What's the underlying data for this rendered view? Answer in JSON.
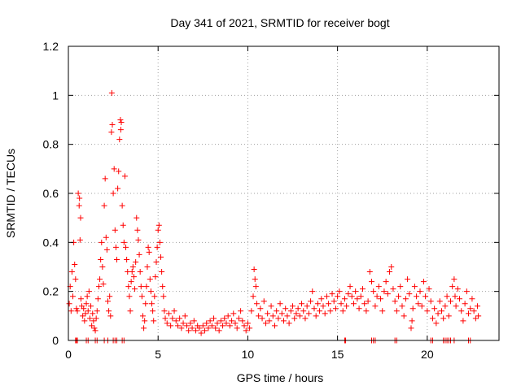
{
  "chart_data": {
    "type": "scatter",
    "title": "Day 341 of 2021, SRMTID for receiver bogt",
    "xlabel": "GPS time / hours",
    "ylabel": "SRMTID / TECUs",
    "xlim": [
      0,
      24
    ],
    "ylim": [
      0,
      1.2
    ],
    "xticks": [
      0,
      5,
      10,
      15,
      20
    ],
    "yticks": [
      0,
      0.2,
      0.4,
      0.6,
      0.8,
      1,
      1.2
    ],
    "xtick_labels": [
      "0",
      "5",
      "10",
      "15",
      "20"
    ],
    "ytick_labels": [
      "0",
      "0.2",
      "0.4",
      "0.6",
      "0.8",
      "1",
      "1.2"
    ],
    "grid": true,
    "marker": "plus",
    "color": "#ff0000",
    "series": [
      {
        "name": "SRMTID",
        "points": [
          [
            0.05,
            0.15
          ],
          [
            0.1,
            0.22
          ],
          [
            0.15,
            0.12
          ],
          [
            0.2,
            0.28
          ],
          [
            0.25,
            0.18
          ],
          [
            0.3,
            0.4
          ],
          [
            0.35,
            0.31
          ],
          [
            0.4,
            0.25
          ],
          [
            0.45,
            0.13
          ],
          [
            0.5,
            0.12
          ],
          [
            0.55,
            0.6
          ],
          [
            0.6,
            0.55
          ],
          [
            0.62,
            0.58
          ],
          [
            0.65,
            0.41
          ],
          [
            0.68,
            0.5
          ],
          [
            0.7,
            0.17
          ],
          [
            0.75,
            0.14
          ],
          [
            0.8,
            0.1
          ],
          [
            0.85,
            0.13
          ],
          [
            0.9,
            0.08
          ],
          [
            0.95,
            0.11
          ],
          [
            1.0,
            0.15
          ],
          [
            1.05,
            0.18
          ],
          [
            1.1,
            0.12
          ],
          [
            1.15,
            0.2
          ],
          [
            1.2,
            0.09
          ],
          [
            1.25,
            0.14
          ],
          [
            1.3,
            0.06
          ],
          [
            1.35,
            0.11
          ],
          [
            1.4,
            0.08
          ],
          [
            1.45,
            0.05
          ],
          [
            1.5,
            0.04
          ],
          [
            1.55,
            0.09
          ],
          [
            1.6,
            0.12
          ],
          [
            1.65,
            0.17
          ],
          [
            1.7,
            0.22
          ],
          [
            1.75,
            0.25
          ],
          [
            1.8,
            0.33
          ],
          [
            1.85,
            0.4
          ],
          [
            1.9,
            0.3
          ],
          [
            1.95,
            0.23
          ],
          [
            2.0,
            0.55
          ],
          [
            2.05,
            0.66
          ],
          [
            2.1,
            0.42
          ],
          [
            2.15,
            0.37
          ],
          [
            2.2,
            0.16
          ],
          [
            2.25,
            0.12
          ],
          [
            2.3,
            0.18
          ],
          [
            2.35,
            0.1
          ],
          [
            2.4,
            0.85
          ],
          [
            2.42,
            1.01
          ],
          [
            2.45,
            0.88
          ],
          [
            2.5,
            0.6
          ],
          [
            2.55,
            0.7
          ],
          [
            2.6,
            0.45
          ],
          [
            2.65,
            0.38
          ],
          [
            2.7,
            0.33
          ],
          [
            2.75,
            0.62
          ],
          [
            2.8,
            0.69
          ],
          [
            2.85,
            0.82
          ],
          [
            2.9,
            0.9
          ],
          [
            2.92,
            0.86
          ],
          [
            2.95,
            0.89
          ],
          [
            3.0,
            0.55
          ],
          [
            3.05,
            0.47
          ],
          [
            3.1,
            0.4
          ],
          [
            3.15,
            0.67
          ],
          [
            3.2,
            0.38
          ],
          [
            3.25,
            0.33
          ],
          [
            3.3,
            0.28
          ],
          [
            3.35,
            0.22
          ],
          [
            3.4,
            0.18
          ],
          [
            3.45,
            0.12
          ],
          [
            3.5,
            0.24
          ],
          [
            3.55,
            0.28
          ],
          [
            3.6,
            0.3
          ],
          [
            3.65,
            0.26
          ],
          [
            3.7,
            0.21
          ],
          [
            3.75,
            0.32
          ],
          [
            3.8,
            0.5
          ],
          [
            3.85,
            0.45
          ],
          [
            3.9,
            0.41
          ],
          [
            3.95,
            0.35
          ],
          [
            4.0,
            0.28
          ],
          [
            4.05,
            0.22
          ],
          [
            4.1,
            0.18
          ],
          [
            4.15,
            0.1
          ],
          [
            4.2,
            0.05
          ],
          [
            4.25,
            0.08
          ],
          [
            4.3,
            0.15
          ],
          [
            4.35,
            0.22
          ],
          [
            4.4,
            0.3
          ],
          [
            4.45,
            0.38
          ],
          [
            4.5,
            0.36
          ],
          [
            4.55,
            0.25
          ],
          [
            4.6,
            0.2
          ],
          [
            4.65,
            0.15
          ],
          [
            4.7,
            0.12
          ],
          [
            4.75,
            0.08
          ],
          [
            4.8,
            0.18
          ],
          [
            4.85,
            0.26
          ],
          [
            4.9,
            0.32
          ],
          [
            4.95,
            0.38
          ],
          [
            5.0,
            0.45
          ],
          [
            5.05,
            0.47
          ],
          [
            5.1,
            0.4
          ],
          [
            5.15,
            0.34
          ],
          [
            5.2,
            0.28
          ],
          [
            5.25,
            0.22
          ],
          [
            5.3,
            0.18
          ],
          [
            5.35,
            0.12
          ],
          [
            5.4,
            0.09
          ],
          [
            5.5,
            0.07
          ],
          [
            5.6,
            0.11
          ],
          [
            5.7,
            0.06
          ],
          [
            5.8,
            0.09
          ],
          [
            5.9,
            0.12
          ],
          [
            6.0,
            0.08
          ],
          [
            6.1,
            0.06
          ],
          [
            6.2,
            0.09
          ],
          [
            6.3,
            0.05
          ],
          [
            6.4,
            0.07
          ],
          [
            6.5,
            0.1
          ],
          [
            6.6,
            0.06
          ],
          [
            6.7,
            0.04
          ],
          [
            6.8,
            0.07
          ],
          [
            6.9,
            0.05
          ],
          [
            7.0,
            0.08
          ],
          [
            7.1,
            0.04
          ],
          [
            7.2,
            0.06
          ],
          [
            7.3,
            0.05
          ],
          [
            7.4,
            0.03
          ],
          [
            7.5,
            0.06
          ],
          [
            7.6,
            0.04
          ],
          [
            7.7,
            0.07
          ],
          [
            7.8,
            0.05
          ],
          [
            7.9,
            0.08
          ],
          [
            8.0,
            0.06
          ],
          [
            8.1,
            0.09
          ],
          [
            8.2,
            0.05
          ],
          [
            8.3,
            0.07
          ],
          [
            8.4,
            0.04
          ],
          [
            8.5,
            0.08
          ],
          [
            8.6,
            0.06
          ],
          [
            8.7,
            0.09
          ],
          [
            8.8,
            0.07
          ],
          [
            8.9,
            0.1
          ],
          [
            9.0,
            0.06
          ],
          [
            9.1,
            0.08
          ],
          [
            9.2,
            0.11
          ],
          [
            9.3,
            0.07
          ],
          [
            9.4,
            0.05
          ],
          [
            9.5,
            0.09
          ],
          [
            9.6,
            0.12
          ],
          [
            9.7,
            0.08
          ],
          [
            9.8,
            0.06
          ],
          [
            9.9,
            0.04
          ],
          [
            10.0,
            0.07
          ],
          [
            10.1,
            0.05
          ],
          [
            10.2,
            0.12
          ],
          [
            10.3,
            0.18
          ],
          [
            10.35,
            0.29
          ],
          [
            10.4,
            0.25
          ],
          [
            10.45,
            0.22
          ],
          [
            10.5,
            0.15
          ],
          [
            10.6,
            0.1
          ],
          [
            10.7,
            0.13
          ],
          [
            10.8,
            0.09
          ],
          [
            10.9,
            0.16
          ],
          [
            11.0,
            0.07
          ],
          [
            11.1,
            0.11
          ],
          [
            11.2,
            0.08
          ],
          [
            11.3,
            0.14
          ],
          [
            11.4,
            0.1
          ],
          [
            11.5,
            0.06
          ],
          [
            11.6,
            0.12
          ],
          [
            11.7,
            0.09
          ],
          [
            11.8,
            0.15
          ],
          [
            11.9,
            0.11
          ],
          [
            12.0,
            0.08
          ],
          [
            12.1,
            0.13
          ],
          [
            12.2,
            0.1
          ],
          [
            12.3,
            0.07
          ],
          [
            12.4,
            0.12
          ],
          [
            12.5,
            0.14
          ],
          [
            12.6,
            0.09
          ],
          [
            12.7,
            0.11
          ],
          [
            12.8,
            0.13
          ],
          [
            12.9,
            0.1
          ],
          [
            13.0,
            0.15
          ],
          [
            13.1,
            0.12
          ],
          [
            13.2,
            0.09
          ],
          [
            13.3,
            0.14
          ],
          [
            13.4,
            0.11
          ],
          [
            13.5,
            0.16
          ],
          [
            13.6,
            0.2
          ],
          [
            13.7,
            0.13
          ],
          [
            13.8,
            0.1
          ],
          [
            13.9,
            0.15
          ],
          [
            14.0,
            0.12
          ],
          [
            14.1,
            0.17
          ],
          [
            14.2,
            0.14
          ],
          [
            14.3,
            0.11
          ],
          [
            14.4,
            0.18
          ],
          [
            14.5,
            0.15
          ],
          [
            14.6,
            0.12
          ],
          [
            14.7,
            0.19
          ],
          [
            14.8,
            0.16
          ],
          [
            14.9,
            0.13
          ],
          [
            15.0,
            0.18
          ],
          [
            15.1,
            0.2
          ],
          [
            15.2,
            0.15
          ],
          [
            15.3,
            0.12
          ],
          [
            15.4,
            0.17
          ],
          [
            15.5,
            0.14
          ],
          [
            15.6,
            0.19
          ],
          [
            15.7,
            0.22
          ],
          [
            15.8,
            0.18
          ],
          [
            15.9,
            0.15
          ],
          [
            16.0,
            0.2
          ],
          [
            16.1,
            0.17
          ],
          [
            16.2,
            0.13
          ],
          [
            16.3,
            0.18
          ],
          [
            16.4,
            0.21
          ],
          [
            16.5,
            0.15
          ],
          [
            16.6,
            0.12
          ],
          [
            16.7,
            0.16
          ],
          [
            16.8,
            0.28
          ],
          [
            16.9,
            0.24
          ],
          [
            17.0,
            0.2
          ],
          [
            17.1,
            0.14
          ],
          [
            17.2,
            0.18
          ],
          [
            17.3,
            0.22
          ],
          [
            17.4,
            0.17
          ],
          [
            17.5,
            0.12
          ],
          [
            17.6,
            0.2
          ],
          [
            17.7,
            0.24
          ],
          [
            17.8,
            0.19
          ],
          [
            17.9,
            0.28
          ],
          [
            18.0,
            0.3
          ],
          [
            18.1,
            0.21
          ],
          [
            18.2,
            0.16
          ],
          [
            18.3,
            0.12
          ],
          [
            18.4,
            0.18
          ],
          [
            18.5,
            0.22
          ],
          [
            18.6,
            0.14
          ],
          [
            18.7,
            0.1
          ],
          [
            18.8,
            0.17
          ],
          [
            18.9,
            0.25
          ],
          [
            19.0,
            0.19
          ],
          [
            19.1,
            0.05
          ],
          [
            19.15,
            0.08
          ],
          [
            19.2,
            0.13
          ],
          [
            19.3,
            0.22
          ],
          [
            19.4,
            0.18
          ],
          [
            19.5,
            0.15
          ],
          [
            19.6,
            0.2
          ],
          [
            19.7,
            0.14
          ],
          [
            19.8,
            0.24
          ],
          [
            19.9,
            0.18
          ],
          [
            20.0,
            0.12
          ],
          [
            20.1,
            0.21
          ],
          [
            20.2,
            0.16
          ],
          [
            20.3,
            0.09
          ],
          [
            20.4,
            0.13
          ],
          [
            20.5,
            0.07
          ],
          [
            20.6,
            0.11
          ],
          [
            20.7,
            0.16
          ],
          [
            20.8,
            0.12
          ],
          [
            20.9,
            0.09
          ],
          [
            21.0,
            0.14
          ],
          [
            21.1,
            0.18
          ],
          [
            21.2,
            0.1
          ],
          [
            21.3,
            0.16
          ],
          [
            21.4,
            0.22
          ],
          [
            21.5,
            0.25
          ],
          [
            21.55,
            0.18
          ],
          [
            21.6,
            0.14
          ],
          [
            21.7,
            0.21
          ],
          [
            21.8,
            0.17
          ],
          [
            21.9,
            0.12
          ],
          [
            22.0,
            0.08
          ],
          [
            22.1,
            0.15
          ],
          [
            22.2,
            0.2
          ],
          [
            22.3,
            0.11
          ],
          [
            22.4,
            0.13
          ],
          [
            22.5,
            0.17
          ],
          [
            22.6,
            0.12
          ],
          [
            22.7,
            0.09
          ],
          [
            22.8,
            0.14
          ],
          [
            22.85,
            0.1
          ],
          [
            0.4,
            0
          ],
          [
            0.45,
            0
          ],
          [
            0.5,
            0
          ],
          [
            1.0,
            0
          ],
          [
            1.1,
            0
          ],
          [
            1.5,
            0
          ],
          [
            1.6,
            0
          ],
          [
            2.0,
            0
          ],
          [
            2.2,
            0
          ],
          [
            2.5,
            0
          ],
          [
            2.6,
            0
          ],
          [
            2.7,
            0
          ],
          [
            3.0,
            0
          ],
          [
            3.1,
            0
          ],
          [
            15.4,
            0
          ],
          [
            15.45,
            0
          ],
          [
            16.9,
            0
          ],
          [
            17.0,
            0
          ],
          [
            17.1,
            0
          ],
          [
            18.2,
            0
          ],
          [
            18.3,
            0
          ],
          [
            20.2,
            0
          ],
          [
            20.3,
            0
          ],
          [
            20.9,
            0
          ],
          [
            21.0,
            0
          ],
          [
            21.1,
            0
          ],
          [
            21.2,
            0
          ],
          [
            21.3,
            0
          ],
          [
            21.5,
            0
          ],
          [
            22.3,
            0
          ],
          [
            22.4,
            0
          ]
        ]
      }
    ]
  }
}
